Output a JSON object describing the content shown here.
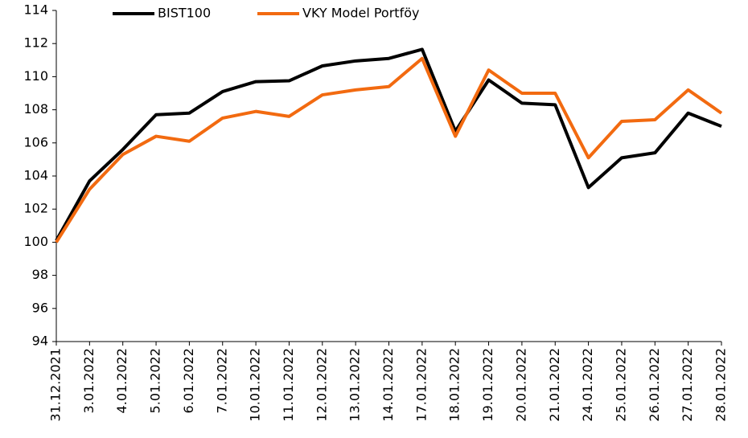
{
  "chart_data": {
    "type": "line",
    "categories": [
      "31.12.2021",
      "3.01.2022",
      "4.01.2022",
      "5.01.2022",
      "6.01.2022",
      "7.01.2022",
      "10.01.2022",
      "11.01.2022",
      "12.01.2022",
      "13.01.2022",
      "14.01.2022",
      "17.01.2022",
      "18.01.2022",
      "19.01.2022",
      "20.01.2022",
      "21.01.2022",
      "24.01.2022",
      "25.01.2022",
      "26.01.2022",
      "27.01.2022",
      "28.01.2022"
    ],
    "series": [
      {
        "name": "BIST100",
        "color": "#000000",
        "values": [
          100.1,
          103.7,
          105.6,
          107.7,
          107.8,
          109.1,
          109.7,
          109.75,
          110.65,
          110.95,
          111.1,
          111.65,
          106.7,
          109.8,
          108.4,
          108.3,
          103.3,
          105.1,
          105.4,
          107.8,
          107.0
        ]
      },
      {
        "name": "VKY Model Portföy",
        "color": "#f26a10",
        "values": [
          100.0,
          103.2,
          105.3,
          106.4,
          106.1,
          107.5,
          107.9,
          107.6,
          108.9,
          109.2,
          109.4,
          111.1,
          106.4,
          110.4,
          109.0,
          109.0,
          105.1,
          107.3,
          107.4,
          109.2,
          107.8
        ]
      }
    ],
    "ylim": [
      94,
      114
    ],
    "yticks": [
      94,
      96,
      98,
      100,
      102,
      104,
      106,
      108,
      110,
      112,
      114
    ],
    "legend": "top"
  }
}
